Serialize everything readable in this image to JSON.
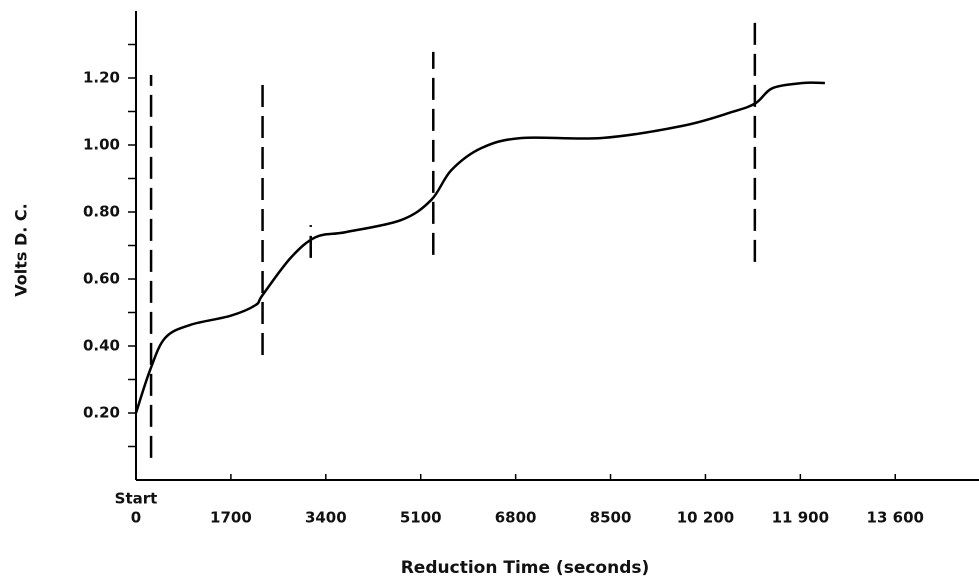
{
  "chart_data": {
    "type": "line",
    "x_label": "Reduction Time (seconds)",
    "y_label": "Volts D. C.",
    "x_start_label": "Start",
    "color": "#000000",
    "x": [
      0,
      252,
      522,
      971,
      1691,
      2141,
      2267,
      2770,
      3220,
      3760,
      4749,
      5289,
      5649,
      6189,
      6908,
      8347,
      9787,
      10686,
      11100,
      11405,
      11945,
      12340
    ],
    "values": [
      0.2,
      0.328,
      0.424,
      0.463,
      0.49,
      0.522,
      0.552,
      0.663,
      0.725,
      0.74,
      0.776,
      0.836,
      0.925,
      0.991,
      1.021,
      1.021,
      1.057,
      1.099,
      1.125,
      1.17,
      1.185,
      1.185
    ],
    "reference_lines": [
      {
        "x": 270,
        "y": [
          0.066,
          1.209
        ]
      },
      {
        "x": 2267,
        "y": [
          0.373,
          1.194
        ]
      },
      {
        "x": 3130,
        "y": [
          0.663,
          0.761
        ]
      },
      {
        "x": 5325,
        "y": [
          0.672,
          1.278
        ]
      },
      {
        "x": 11085,
        "y": [
          0.651,
          1.391
        ]
      }
    ],
    "xlim": [
      0,
      15100
    ],
    "ylim": [
      0,
      1.4
    ],
    "xticks": [
      0,
      1700,
      3400,
      5100,
      6800,
      8500,
      {
        "value": 10200,
        "label": "10 200"
      },
      {
        "value": 11900,
        "label": "11 900"
      },
      {
        "value": 13600,
        "label": "13 600"
      }
    ],
    "yticks": [
      {
        "value": 0.2,
        "label": "0.20"
      },
      {
        "value": 0.4,
        "label": "0.40"
      },
      {
        "value": 0.6,
        "label": "0.60"
      },
      {
        "value": 0.8,
        "label": "0.80"
      },
      {
        "value": 1.0,
        "label": "1.00"
      },
      {
        "value": 1.2,
        "label": "1.20"
      }
    ],
    "yminor": [
      0.1,
      0.3,
      0.5,
      0.7,
      0.9,
      1.1,
      1.3
    ],
    "grid": false
  }
}
